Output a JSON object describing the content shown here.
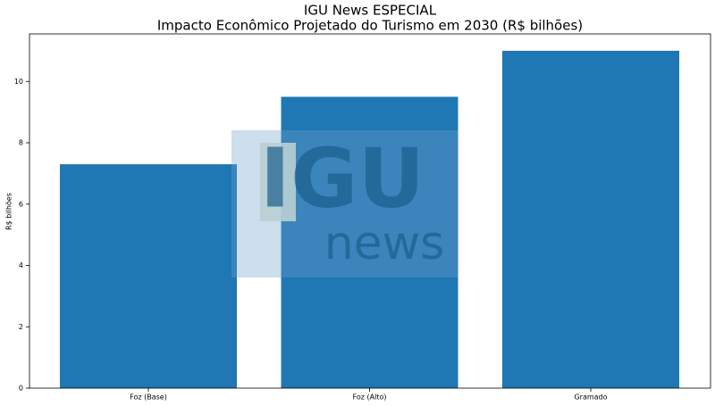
{
  "chart_data": {
    "type": "bar",
    "title": "IGU News ESPECIAL",
    "subtitle": "Impacto Econômico Projetado do Turismo em 2030 (R$ bilhões)",
    "y_label": "R$ bilhões",
    "categories": [
      "Foz (Base)",
      "Foz (Alto)",
      "Gramado"
    ],
    "values": [
      7.3,
      9.5,
      11.0
    ],
    "color": "#1f77b4",
    "ylim": [
      0,
      11.55
    ],
    "yticks": [
      0,
      2,
      4,
      6,
      8,
      10
    ],
    "grid": false
  },
  "watermark": {
    "logo": "IGU",
    "caption": "news"
  }
}
